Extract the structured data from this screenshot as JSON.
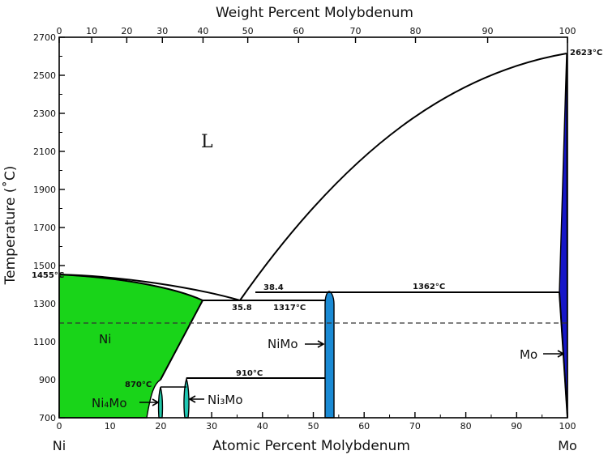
{
  "axes": {
    "top_title": "Weight Percent Molybdenum",
    "bottom_title": "Atomic Percent Molybdenum",
    "left_title": "Temperature (˚C)",
    "top_ticks": [
      "0",
      "10",
      "20",
      "30",
      "40",
      "50",
      "60",
      "70",
      "80",
      "90",
      "100"
    ],
    "bottom_ticks": [
      "0",
      "10",
      "20",
      "30",
      "40",
      "50",
      "60",
      "70",
      "80",
      "90",
      "100"
    ],
    "left_ticks": [
      "700",
      "900",
      "1100",
      "1300",
      "1500",
      "1700",
      "1900",
      "2100",
      "2300",
      "2500",
      "2700"
    ],
    "left_end": "Ni",
    "right_end": "Mo",
    "weight_ticks_at_pct": [
      0,
      6.4,
      13.3,
      20.3,
      28.3,
      37.1,
      47.1,
      58.3,
      70.1,
      84.3,
      100
    ]
  },
  "annotations": {
    "ni_melting": "1455°C",
    "mo_melting": "2623°C",
    "peritectic_1362": "1362°C",
    "peritectic_1317": "1317°C",
    "eutectoid_910": "910°C",
    "ni4mo_870": "870°C",
    "comp_384": "38.4",
    "comp_358": "35.8"
  },
  "phases": {
    "liquid": "L",
    "ni": "Ni",
    "nimo": "NiMo",
    "mo": "Mo",
    "ni4mo": "Ni₄Mo",
    "ni3mo": "Ni₃Mo"
  },
  "colors": {
    "ni_phase": "#19d419",
    "nimo_phase": "#1a8ad4",
    "mo_phase": "#1616c8",
    "ni4mo_phase": "#1fc8a8",
    "ni3mo_phase": "#1fc8b4"
  }
}
